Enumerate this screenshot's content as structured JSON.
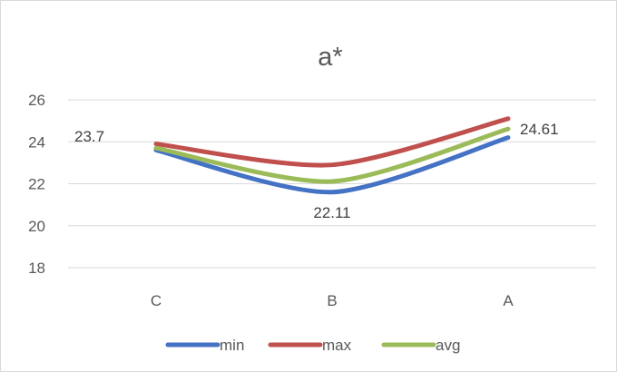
{
  "chart_data": {
    "type": "line",
    "title": "a*",
    "categories": [
      "C",
      "B",
      "A"
    ],
    "series": [
      {
        "name": "min",
        "values": [
          23.6,
          21.6,
          24.2
        ],
        "color": "#4472c4"
      },
      {
        "name": "max",
        "values": [
          23.9,
          22.9,
          25.1
        ],
        "color": "#c0504d"
      },
      {
        "name": "avg",
        "values": [
          23.7,
          22.11,
          24.61
        ],
        "color": "#9bbb59"
      }
    ],
    "data_labels": [
      {
        "series": "avg",
        "category": "C",
        "text": "23.7"
      },
      {
        "series": "avg",
        "category": "B",
        "text": "22.11"
      },
      {
        "series": "avg",
        "category": "A",
        "text": "24.61"
      }
    ],
    "ylim": [
      18,
      26
    ],
    "yticks": [
      18,
      20,
      22,
      24,
      26
    ],
    "grid": true,
    "smooth": true,
    "legend": "bottom"
  }
}
